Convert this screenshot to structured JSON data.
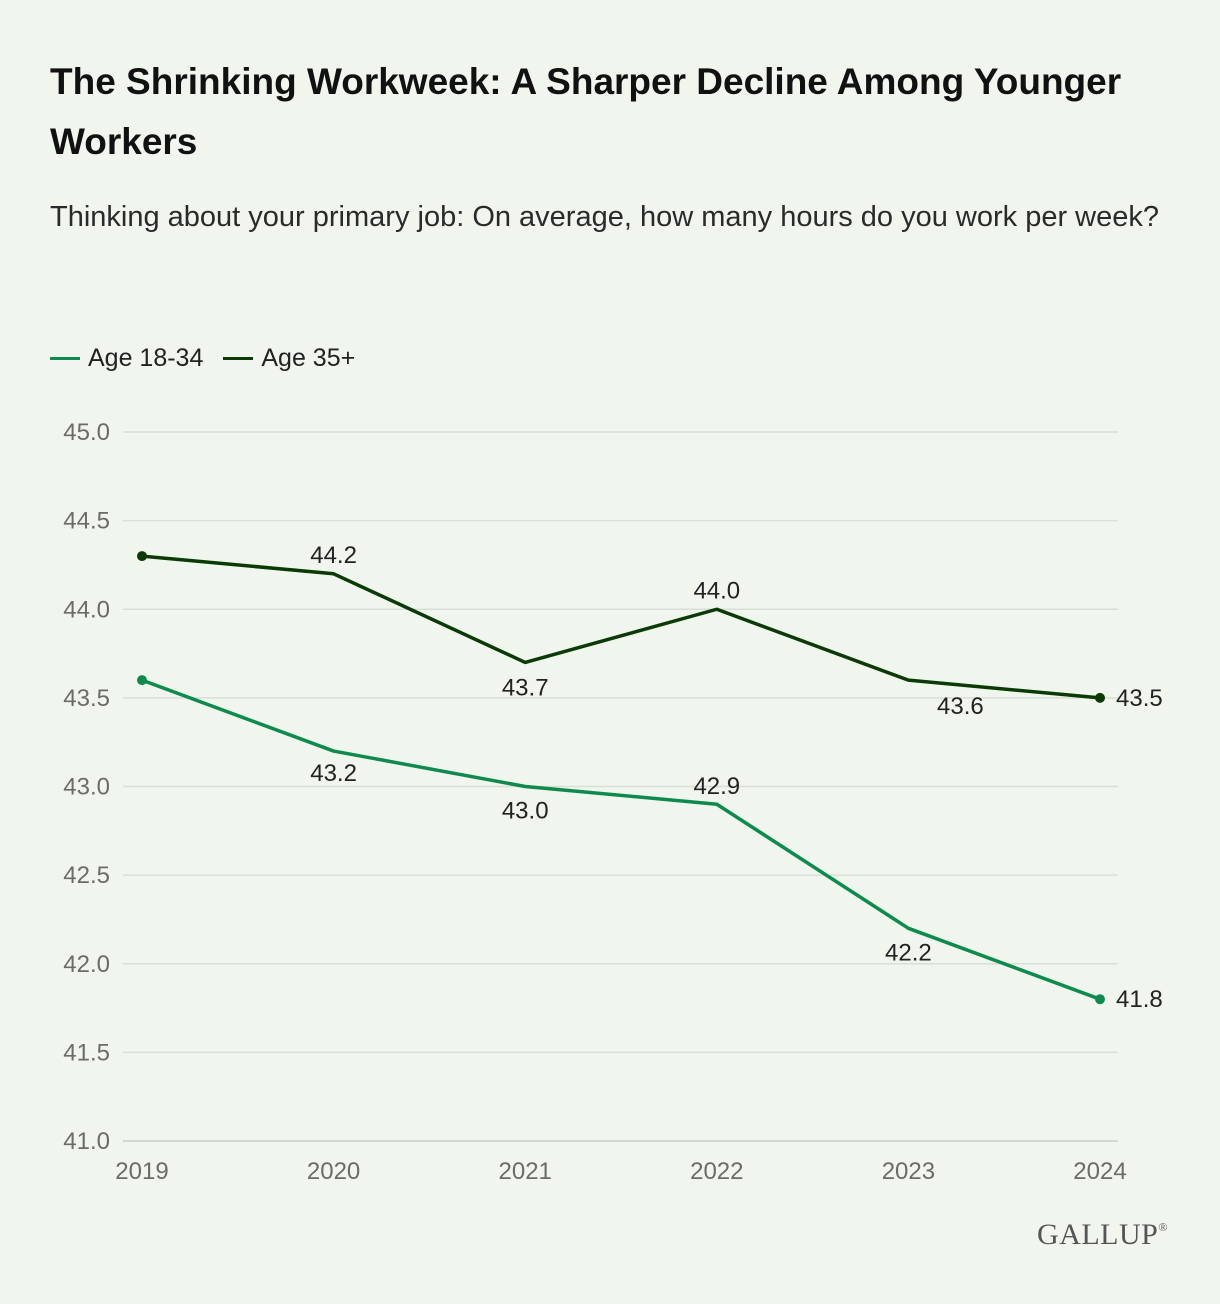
{
  "title": "The Shrinking Workweek: A Sharper Decline Among Younger Workers",
  "subtitle": "Thinking about your primary job: On average, how many hours do you work per week?",
  "logo": "GALLUP",
  "colors": {
    "background": "#f0f6ee",
    "age_18_34": "#0e8a4e",
    "age_35_plus": "#0b3a06",
    "grid": "#d9dfd7"
  },
  "chart_data": {
    "type": "line",
    "x": [
      "2019",
      "2020",
      "2021",
      "2022",
      "2023",
      "2024"
    ],
    "series": [
      {
        "name": "Age 18-34",
        "color": "#0e8a4e",
        "values": [
          43.6,
          43.2,
          43.0,
          42.9,
          42.2,
          41.8
        ],
        "labels": [
          "",
          "43.2",
          "43.0",
          "42.9",
          "42.2",
          "41.8"
        ]
      },
      {
        "name": "Age 35+",
        "color": "#0b3a06",
        "values": [
          44.3,
          44.2,
          43.7,
          44.0,
          43.6,
          43.5
        ],
        "labels": [
          "",
          "44.2",
          "43.7",
          "44.0",
          "43.6",
          "43.5"
        ]
      }
    ],
    "ylim": [
      41.0,
      45.0
    ],
    "yticks": [
      "41.0",
      "41.5",
      "42.0",
      "42.5",
      "43.0",
      "43.5",
      "44.0",
      "44.5",
      "45.0"
    ],
    "grid": true,
    "legend": "top-left"
  }
}
